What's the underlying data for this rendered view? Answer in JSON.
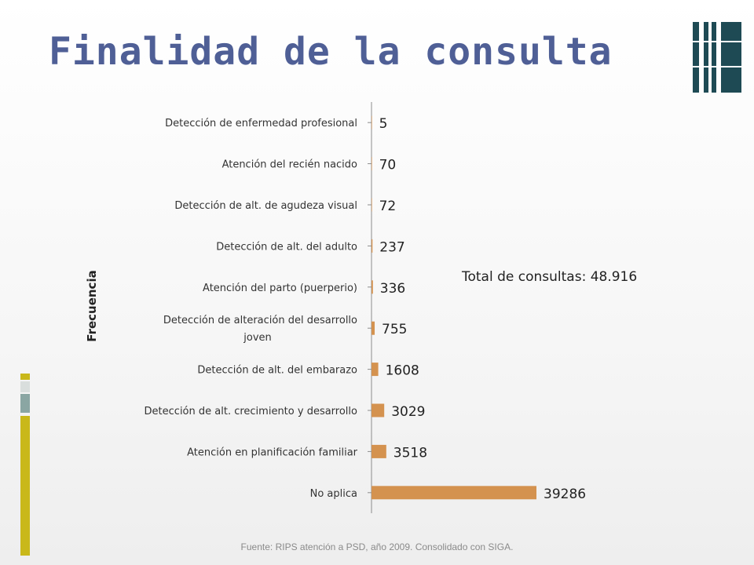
{
  "slide": {
    "title": "Finalidad de la consulta",
    "footer": "Fuente: RIPS atención a PSD, año 2009. Consolidado con SIGA."
  },
  "chart_data": {
    "type": "bar",
    "orientation": "horizontal",
    "categories": [
      "Detección de enfermedad profesional",
      "Atención del recién nacido",
      "Detección de alt. de agudeza visual",
      "Detección de alt. del adulto",
      "Atención del parto (puerperio)",
      [
        "Detección de alteración del desarrollo",
        "joven"
      ],
      "Detección de alt. del embarazo",
      "Detección de alt. crecimiento y desarrollo",
      "Atención en planificación familiar",
      "No aplica"
    ],
    "values": [
      5,
      70,
      72,
      237,
      336,
      755,
      1608,
      3029,
      3518,
      39286
    ],
    "value_labels": [
      "5",
      "70",
      "72",
      "237",
      "336",
      "755",
      "1608",
      "3029",
      "3518",
      "39286"
    ],
    "ylabel": "Frecuencia",
    "annotation": "Total de consultas: 48.916",
    "bar_color": "#d4924f",
    "grid": false,
    "legend": "none"
  },
  "colors": {
    "title": "#4f5f96",
    "bar": "#d4924f",
    "axis": "#8c8c8c",
    "accent_dark": "#1e4a54",
    "accent_olive": "#c9b81a",
    "accent_teal": "#8aa6a3"
  }
}
